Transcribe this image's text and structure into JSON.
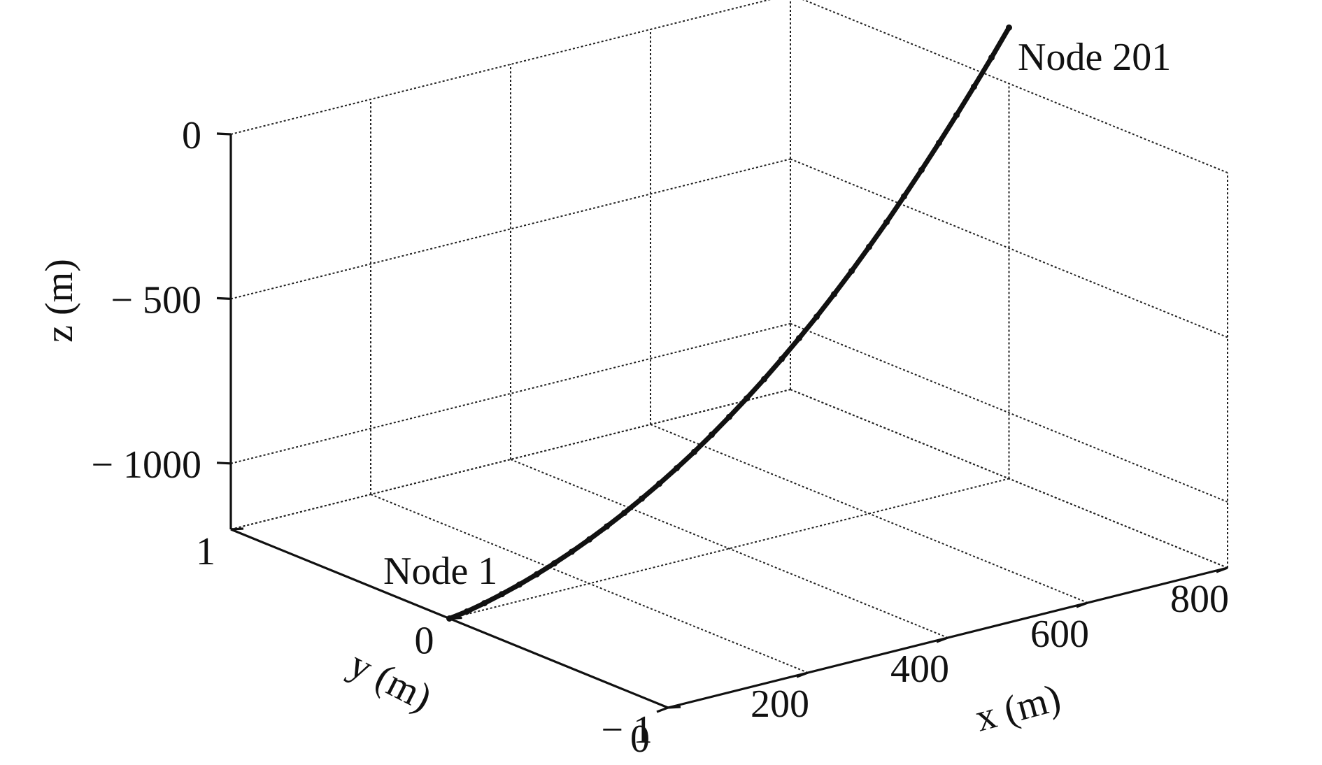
{
  "chart_data": {
    "type": "line",
    "projection": "3d",
    "xlabel": "x (m)",
    "ylabel": "y (m)",
    "zlabel": "z (m)",
    "xlim": [
      0,
      800
    ],
    "ylim": [
      -1,
      1
    ],
    "zlim": [
      -1200,
      0
    ],
    "xticks": [
      0,
      200,
      400,
      600,
      800
    ],
    "yticks": [
      -1,
      0,
      1
    ],
    "zticks": [
      -1000,
      -500,
      0
    ],
    "xtick_labels": [
      "0",
      "200",
      "400",
      "600",
      "800"
    ],
    "ytick_labels": [
      "− 1",
      "0",
      "1"
    ],
    "ztick_labels": [
      "− 1000",
      "− 500",
      "0"
    ],
    "grid": true,
    "series": [
      {
        "x": [
          0,
          25,
          50,
          75,
          100,
          125,
          150,
          175,
          200,
          225,
          250,
          275,
          300,
          325,
          350,
          375,
          400,
          425,
          450,
          475,
          500,
          525,
          550,
          575,
          600,
          625,
          650,
          675,
          700,
          725,
          750,
          775,
          800
        ],
        "y": [
          0,
          0,
          0,
          0,
          0,
          0,
          0,
          0,
          0,
          0,
          0,
          0,
          0,
          0,
          0,
          0,
          0,
          0,
          0,
          0,
          0,
          0,
          0,
          0,
          0,
          0,
          0,
          0,
          0,
          0,
          0,
          0,
          0
        ],
        "z": [
          -1200,
          -1192,
          -1180,
          -1166,
          -1150,
          -1132,
          -1112,
          -1090,
          -1066,
          -1040,
          -1012,
          -982,
          -950,
          -916,
          -880,
          -841,
          -800,
          -757,
          -712,
          -664,
          -614,
          -562,
          -507,
          -450,
          -390,
          -328,
          -263,
          -196,
          -127,
          -56,
          17,
          92,
          170
        ]
      }
    ],
    "annotations": [
      {
        "text": "Node 1",
        "x": 0,
        "y": 0,
        "z": -1200
      },
      {
        "text": "Node 201",
        "x": 800,
        "y": 0,
        "z": 170
      }
    ]
  }
}
